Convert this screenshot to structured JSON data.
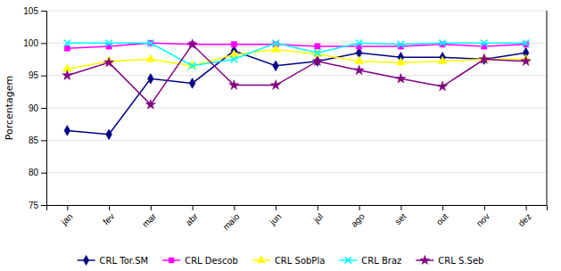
{
  "chart_data": {
    "type": "line",
    "ylabel": "Porcentagem",
    "categories": [
      "jan",
      "fev",
      "mar",
      "abr",
      "maio",
      "jun",
      "jul",
      "ago",
      "set",
      "out",
      "nov",
      "dez"
    ],
    "series": [
      {
        "name": "CRL Tor.SM",
        "color": "#000080",
        "marker": "diamond",
        "values": [
          86.5,
          85.9,
          94.5,
          93.8,
          98.8,
          96.5,
          97.2,
          98.5,
          97.8,
          97.8,
          97.5,
          98.5
        ]
      },
      {
        "name": "CRL Descob",
        "color": "#FF00FF",
        "marker": "square",
        "values": [
          99.2,
          99.5,
          100.0,
          99.8,
          99.8,
          99.8,
          99.5,
          99.5,
          99.5,
          99.8,
          99.5,
          99.8
        ]
      },
      {
        "name": "CRL SobPla",
        "color": "#FFFF00",
        "marker": "triangle",
        "values": [
          96.0,
          97.2,
          97.5,
          96.5,
          98.2,
          99.0,
          98.3,
          97.2,
          97.0,
          97.2,
          97.5,
          97.5
        ]
      },
      {
        "name": "CRL Braz",
        "color": "#00FFFF",
        "marker": "x",
        "values": [
          100.0,
          100.0,
          100.0,
          96.5,
          97.5,
          100.0,
          98.5,
          100.0,
          99.8,
          100.0,
          100.0,
          100.0
        ]
      },
      {
        "name": "CRL S.Seb",
        "color": "#800080",
        "marker": "star",
        "values": [
          95.0,
          97.0,
          90.5,
          99.8,
          93.5,
          93.5,
          97.2,
          95.8,
          94.5,
          93.3,
          97.5,
          97.2
        ]
      }
    ],
    "ylim": [
      75,
      105
    ],
    "yticks": [
      75,
      80,
      85,
      90,
      95,
      100,
      105
    ],
    "grid": true,
    "legend": "bottom"
  }
}
